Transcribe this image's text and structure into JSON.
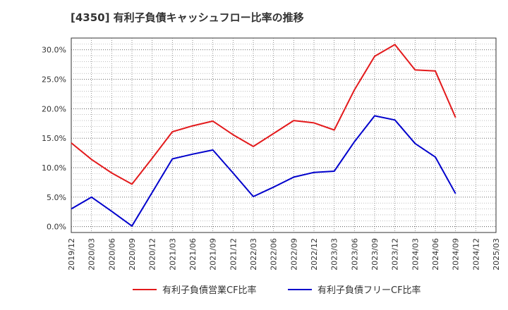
{
  "chart_data": {
    "type": "line",
    "title": "[4350]  有利子負債キャッシュフロー比率の推移",
    "xlabel": "",
    "ylabel": "",
    "ylim": [
      -1,
      32
    ],
    "yticks": [
      0,
      5,
      10,
      15,
      20,
      25,
      30
    ],
    "yticklabels": [
      "0.0%",
      "5.0%",
      "10.0%",
      "15.0%",
      "20.0%",
      "25.0%",
      "30.0%"
    ],
    "grid": true,
    "legend_position": "bottom",
    "categories": [
      "2019/12",
      "2020/03",
      "2020/06",
      "2020/09",
      "2020/12",
      "2021/03",
      "2021/06",
      "2021/09",
      "2021/12",
      "2022/03",
      "2022/06",
      "2022/09",
      "2022/12",
      "2023/03",
      "2023/06",
      "2023/09",
      "2023/12",
      "2024/03",
      "2024/06",
      "2024/09",
      "2024/12",
      "2025/03"
    ],
    "series": [
      {
        "name": "有利子負債営業CF比率",
        "color": "#e31a1c",
        "values": [
          14.2,
          11.4,
          9.1,
          7.2,
          11.6,
          16.1,
          17.1,
          17.9,
          15.6,
          13.6,
          15.8,
          18.0,
          17.6,
          16.4,
          23.2,
          28.9,
          30.9,
          26.6,
          26.4,
          18.5,
          null,
          null
        ]
      },
      {
        "name": "有利子負債フリーCF比率",
        "color": "#0000cc",
        "values": [
          3.0,
          5.0,
          2.6,
          0.1,
          5.8,
          11.5,
          12.3,
          13.0,
          9.1,
          5.1,
          6.7,
          8.4,
          9.2,
          9.4,
          14.4,
          18.8,
          18.1,
          14.1,
          11.8,
          5.6,
          null,
          null
        ]
      }
    ]
  }
}
